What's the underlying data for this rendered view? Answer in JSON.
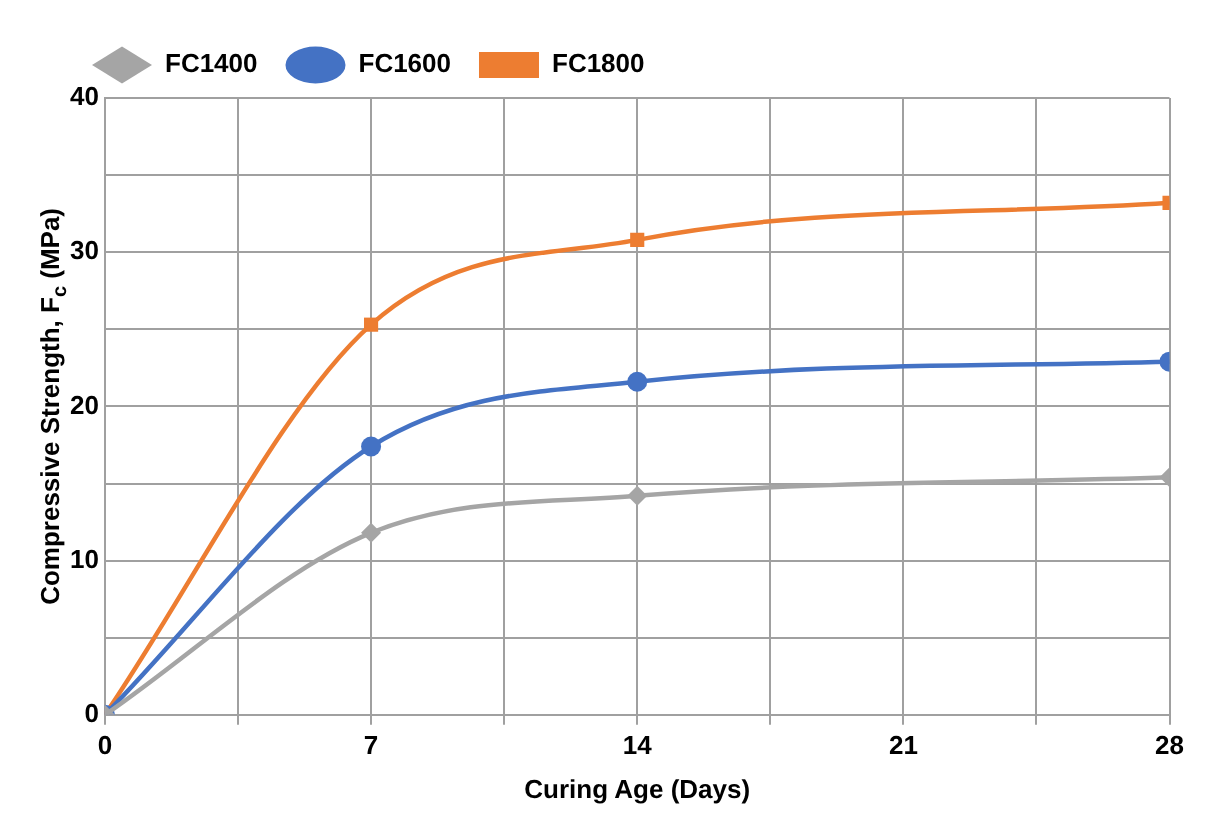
{
  "chart_data": {
    "type": "line",
    "xlabel": "Curing Age (Days)",
    "ylabel": "Compressive Strength, F$_{c}$ (MPa)",
    "x": [
      0,
      7,
      14,
      28
    ],
    "series": [
      {
        "name": "FC1400",
        "color": "#a5a5a5",
        "marker": "diamond",
        "values": [
          0,
          11.8,
          14.2,
          15.4
        ]
      },
      {
        "name": "FC1600",
        "color": "#4472c4",
        "marker": "circle",
        "values": [
          0,
          17.4,
          21.6,
          22.9
        ]
      },
      {
        "name": "FC1800",
        "color": "#ed7d31",
        "marker": "square",
        "values": [
          0,
          25.3,
          30.8,
          33.2
        ]
      }
    ],
    "xlim": [
      0,
      28
    ],
    "xticks": [
      0,
      {
        "value": 3.5,
        "label": null
      },
      7,
      {
        "value": 10.5,
        "label": null
      },
      14,
      {
        "value": 17.5,
        "label": null
      },
      21,
      {
        "value": 24.5,
        "label": null
      },
      28
    ],
    "ylim": [
      0,
      40
    ],
    "yticks": [
      0,
      {
        "value": 5,
        "label": null
      },
      10,
      {
        "value": 15,
        "label": null
      },
      20,
      {
        "value": 25,
        "label": null
      },
      30,
      {
        "value": 35,
        "label": null
      },
      40
    ],
    "grid": true,
    "legend": "top",
    "line_style": "solid"
  }
}
